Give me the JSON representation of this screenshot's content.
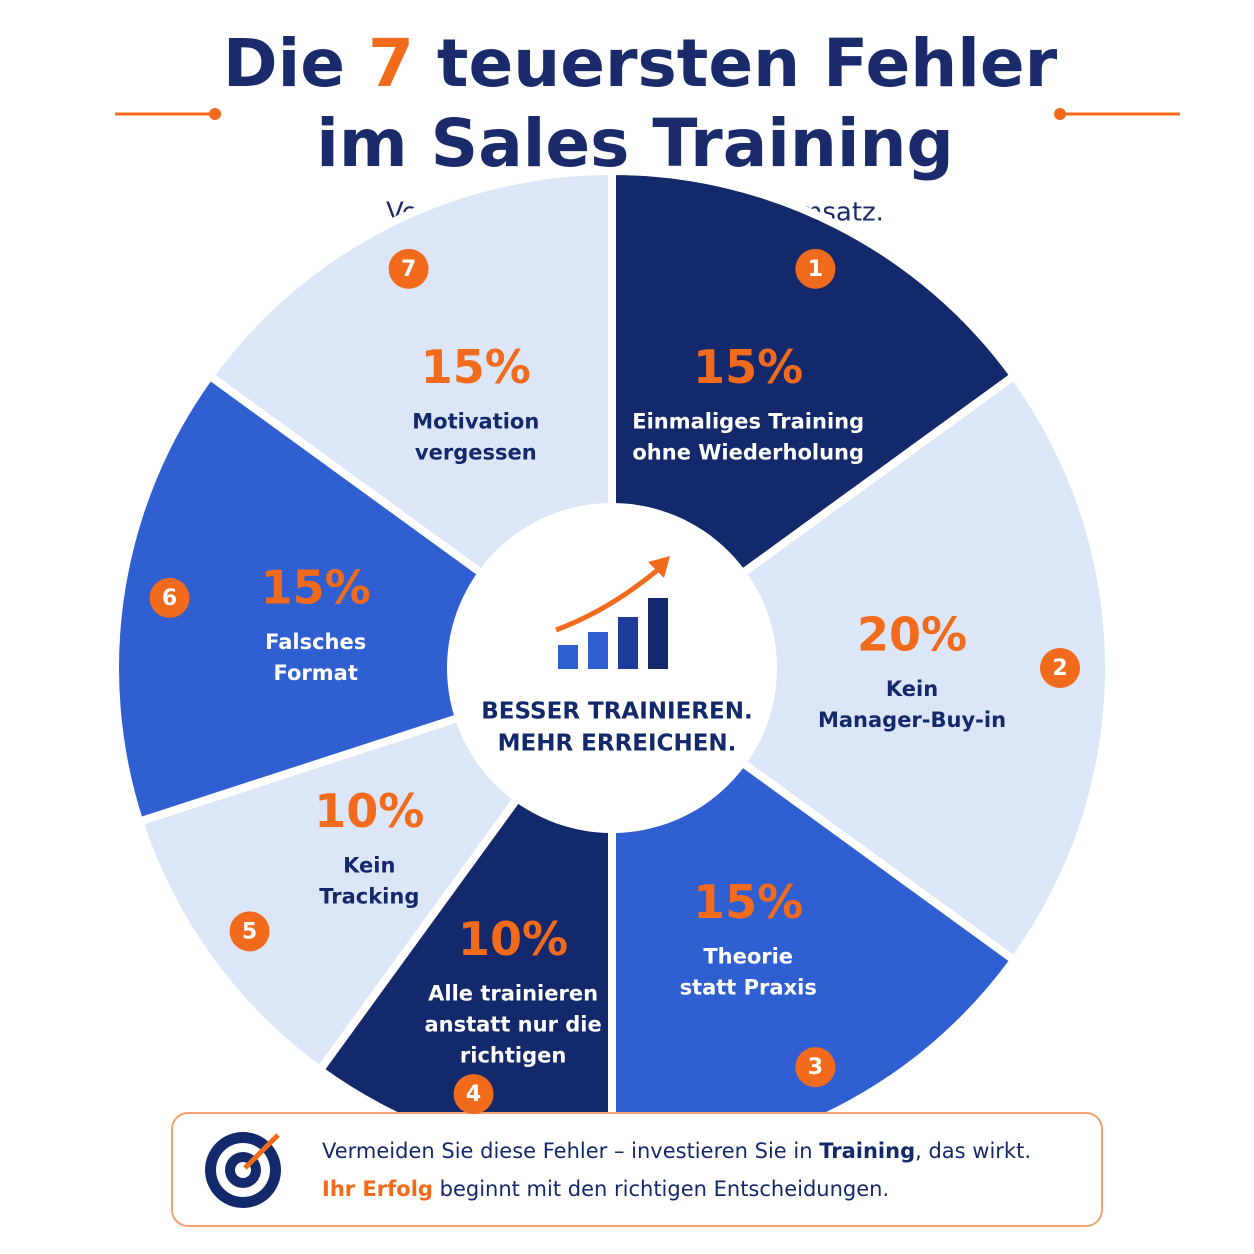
{
  "chart_data": {
    "type": "pie",
    "title": [
      "Die",
      "7",
      "teuersten Fehler",
      "im Sales Training"
    ],
    "subtitle": "Vermeiden. Optimieren. Mehr Umsatz.",
    "center_text": [
      "BESSER TRAINIEREN.",
      "MEHR ERREICHEN."
    ],
    "categories": [
      [
        "Einmaliges Training",
        "ohne Wiederholung"
      ],
      [
        "Kein",
        "Manager-Buy-in"
      ],
      [
        "Theorie",
        "statt Praxis"
      ],
      [
        "Alle trainieren",
        "anstatt nur die",
        "richtigen"
      ],
      [
        "Kein",
        "Tracking"
      ],
      [
        "Falsches",
        "Format"
      ],
      [
        "Motivation",
        "vergessen"
      ]
    ],
    "numbers": [
      "1",
      "2",
      "3",
      "4",
      "5",
      "6",
      "7"
    ],
    "values": [
      15,
      20,
      15,
      10,
      10,
      15,
      15
    ],
    "value_labels": [
      "15%",
      "20%",
      "15%",
      "10%",
      "10%",
      "15%",
      "15%"
    ],
    "colors": [
      "#14296b",
      "#dce6f7",
      "#2f5fd0",
      "#14296b",
      "#dce6f7",
      "#2f5fd0",
      "#dce6f7"
    ],
    "footer": [
      [
        "Vermeiden Sie diese Fehler – investieren Sie in ",
        "Training",
        ", das wirkt."
      ],
      [
        "Ihr Erfolg",
        " beginnt mit den richtigen Entscheidungen."
      ]
    ]
  }
}
